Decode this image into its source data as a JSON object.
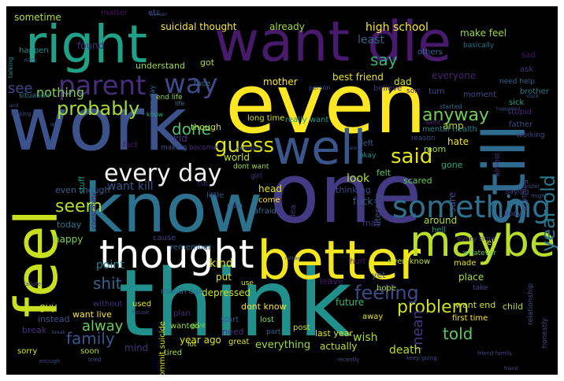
{
  "words": [
    {
      "text": "want die",
      "color": "#481a6c"
    },
    {
      "text": "even",
      "color": "#fde725"
    },
    {
      "text": "work",
      "color": "#3b528b"
    },
    {
      "text": "think",
      "color": "#21908d"
    },
    {
      "text": "know",
      "color": "#2c718e"
    },
    {
      "text": "one",
      "color": "#443a83"
    },
    {
      "text": "better",
      "color": "#f4e61e"
    },
    {
      "text": "right",
      "color": "#1fa187"
    },
    {
      "text": "feel",
      "color": "#c8e020"
    },
    {
      "text": "still",
      "color": "#2f6b8e"
    },
    {
      "text": "thought",
      "color": "#ffffff"
    },
    {
      "text": "maybe",
      "color": "#b8de29"
    },
    {
      "text": "well",
      "color": "#39568c"
    },
    {
      "text": "something",
      "color": "#2d708e"
    },
    {
      "text": "parent",
      "color": "#472d7b"
    },
    {
      "text": "way",
      "color": "#3f4889"
    },
    {
      "text": "every day",
      "color": "#f1f1f1"
    },
    {
      "text": "said",
      "color": "#e2e418"
    },
    {
      "text": "guess",
      "color": "#dde318"
    },
    {
      "text": "probably",
      "color": "#a5db36"
    },
    {
      "text": "year old",
      "color": "#2a788e"
    },
    {
      "text": "feeling",
      "color": "#3e4a89"
    },
    {
      "text": "problem",
      "color": "#d0e11c"
    },
    {
      "text": "anyway",
      "color": "#6ece58"
    },
    {
      "text": "seem",
      "color": "#b5de2b"
    },
    {
      "text": "shit",
      "color": "#33638d"
    },
    {
      "text": "done",
      "color": "#4ac16d"
    },
    {
      "text": "alway",
      "color": "#6ccd5a"
    },
    {
      "text": "family",
      "color": "#3a548c"
    },
    {
      "text": "told",
      "color": "#5ec962"
    },
    {
      "text": "want kill",
      "color": "#38598c"
    },
    {
      "text": "mean",
      "color": "#453781"
    },
    {
      "text": "say",
      "color": "#35b779"
    },
    {
      "text": "see",
      "color": "#3e4989"
    },
    {
      "text": "nothing",
      "color": "#7ad151"
    },
    {
      "text": "sometime",
      "color": "#b0dd2f"
    },
    {
      "text": "found",
      "color": "#46337e"
    },
    {
      "text": "matter",
      "color": "#471063"
    },
    {
      "text": "etc",
      "color": "#3b528b"
    },
    {
      "text": "suicidal thought",
      "color": "#fde725"
    },
    {
      "text": "already",
      "color": "#a0da39"
    },
    {
      "text": "high school",
      "color": "#fde725"
    },
    {
      "text": "make feel",
      "color": "#9bd93c"
    },
    {
      "text": "sad",
      "color": "#481769"
    },
    {
      "text": "ask",
      "color": "#46317e"
    },
    {
      "text": "need help",
      "color": "#31688e"
    },
    {
      "text": "least",
      "color": "#34618d"
    },
    {
      "text": "dad",
      "color": "#d8e219"
    },
    {
      "text": "mother",
      "color": "#fde725"
    },
    {
      "text": "best friend",
      "color": "#e7e419"
    },
    {
      "text": "everyone",
      "color": "#482475"
    },
    {
      "text": "amp",
      "color": "#c2df23"
    },
    {
      "text": "understand",
      "color": "#9bd93c"
    },
    {
      "text": "got",
      "color": "#addc30"
    },
    {
      "text": "face",
      "color": "#2e6e8e"
    },
    {
      "text": "others",
      "color": "#31688e"
    },
    {
      "text": "basically",
      "color": "#2c728e"
    },
    {
      "text": "sick",
      "color": "#21a685"
    },
    {
      "text": "brother",
      "color": "#29798e"
    },
    {
      "text": "moment",
      "color": "#3c4f8a"
    },
    {
      "text": "stupid",
      "color": "#482878"
    },
    {
      "text": "father",
      "color": "#3d4d8a"
    },
    {
      "text": "hate",
      "color": "#f1e51d"
    },
    {
      "text": "mental health",
      "color": "#277f8e"
    },
    {
      "text": "long time",
      "color": "#d0e11c"
    },
    {
      "text": "though",
      "color": "#c5e021"
    },
    {
      "text": "end life",
      "color": "#8bd646"
    },
    {
      "text": "know",
      "color": "#26ad81"
    },
    {
      "text": "kid",
      "color": "#46337e"
    },
    {
      "text": "really want",
      "color": "#1f9a8a"
    },
    {
      "text": "left",
      "color": "#34618d"
    },
    {
      "text": "mom",
      "color": "#9fda3a"
    },
    {
      "text": "world",
      "color": "#c0df25"
    },
    {
      "text": "dont want",
      "color": "#a2da37"
    },
    {
      "text": "girl",
      "color": "#463480"
    },
    {
      "text": "head",
      "color": "#dde318"
    },
    {
      "text": "look",
      "color": "#b5de2b"
    },
    {
      "text": "thinking",
      "color": "#404688"
    },
    {
      "text": "felt",
      "color": "#5cc863"
    },
    {
      "text": "scared",
      "color": "#67cc5c"
    },
    {
      "text": "gone",
      "color": "#25ab82"
    },
    {
      "text": "sure",
      "color": "#3d4e8a"
    },
    {
      "text": "even though",
      "color": "#34618d"
    },
    {
      "text": "stuff",
      "color": "#1f9e89"
    },
    {
      "text": "today",
      "color": "#2c728e"
    },
    {
      "text": "cut",
      "color": "#482173"
    },
    {
      "text": "little",
      "color": "#3a548c"
    },
    {
      "text": "come",
      "color": "#fde725"
    },
    {
      "text": "afraid",
      "color": "#2e6d8e"
    },
    {
      "text": "idea",
      "color": "#46307e"
    },
    {
      "text": "may",
      "color": "#472f7d"
    },
    {
      "text": "fuck",
      "color": "#375a8c"
    },
    {
      "text": "literally",
      "color": "#3b528b"
    },
    {
      "text": "around",
      "color": "#b0dd2f"
    },
    {
      "text": "hell",
      "color": "#20a386"
    },
    {
      "text": "happy",
      "color": "#7ad151"
    },
    {
      "text": "every time",
      "color": "#46327e"
    },
    {
      "text": "tell",
      "color": "#d2e21b"
    },
    {
      "text": "whatever",
      "color": "#6ccd5a"
    },
    {
      "text": "kind",
      "color": "#dde318"
    },
    {
      "text": "point",
      "color": "#25848e"
    },
    {
      "text": "put",
      "color": "#dde318"
    },
    {
      "text": "cause",
      "color": "#424086"
    },
    {
      "text": "remember",
      "color": "#31678e"
    },
    {
      "text": "hurt",
      "color": "#48186a"
    },
    {
      "text": "even know",
      "color": "#c2df23"
    },
    {
      "text": "yet",
      "color": "#3b528b"
    },
    {
      "text": "made",
      "color": "#e7e419"
    },
    {
      "text": "place",
      "color": "#addc30"
    },
    {
      "text": "take",
      "color": "#3f4788"
    },
    {
      "text": "hope",
      "color": "#b2dd2d"
    },
    {
      "text": "depressed",
      "color": "#c5e021"
    },
    {
      "text": "future",
      "color": "#35b779"
    },
    {
      "text": "leave",
      "color": "#481c6e"
    },
    {
      "text": "guy",
      "color": "#c2df23"
    },
    {
      "text": "month ago",
      "color": "#31688e"
    },
    {
      "text": "used",
      "color": "#dde318"
    },
    {
      "text": "plan",
      "color": "#472f7d"
    },
    {
      "text": "wanted",
      "color": "#a0da39"
    },
    {
      "text": "dont know",
      "color": "#fde725"
    },
    {
      "text": "away",
      "color": "#e2e418"
    },
    {
      "text": "want end",
      "color": "#d2e21b"
    },
    {
      "text": "first time",
      "color": "#fde725"
    },
    {
      "text": "relationship",
      "color": "#3c4f8a"
    },
    {
      "text": "child",
      "color": "#b8de29"
    },
    {
      "text": "without",
      "color": "#46327e"
    },
    {
      "text": "instead",
      "color": "#3b528b"
    },
    {
      "text": "break",
      "color": "#472c7a"
    },
    {
      "text": "want live",
      "color": "#fde725"
    },
    {
      "text": "year ago",
      "color": "#dde318"
    },
    {
      "text": "mind",
      "color": "#46327e"
    },
    {
      "text": "tired",
      "color": "#a8db34"
    },
    {
      "text": "commit suicide",
      "color": "#dde318"
    },
    {
      "text": "give",
      "color": "#70cf57"
    },
    {
      "text": "lot",
      "color": "#d8e219"
    },
    {
      "text": "need",
      "color": "#46317e"
    },
    {
      "text": "start",
      "color": "#3a548c"
    },
    {
      "text": "great",
      "color": "#dde318"
    },
    {
      "text": "part",
      "color": "#34618d"
    },
    {
      "text": "lost",
      "color": "#8bd646"
    },
    {
      "text": "post",
      "color": "#c8e020"
    },
    {
      "text": "last year",
      "color": "#dde318"
    },
    {
      "text": "everything",
      "color": "#a0da39"
    },
    {
      "text": "actually",
      "color": "#bddf26"
    },
    {
      "text": "wish",
      "color": "#a5db36"
    },
    {
      "text": "death",
      "color": "#b8de29"
    },
    {
      "text": "sorry",
      "color": "#d5e21a"
    },
    {
      "text": "soon",
      "color": "#b8de29"
    },
    {
      "text": "honestly",
      "color": "#3f4889"
    },
    {
      "text": "use",
      "color": "#dde318"
    },
    {
      "text": "constantly",
      "color": "#481a6c"
    },
    {
      "text": "happen",
      "color": "#20928c"
    },
    {
      "text": "talking",
      "color": "#228c8d"
    },
    {
      "text": "situation",
      "color": "#2a778e"
    },
    {
      "text": "life",
      "color": "#2c728e"
    },
    {
      "text": "one day",
      "color": "#33638d"
    },
    {
      "text": "fact",
      "color": "#481769"
    },
    {
      "text": "making",
      "color": "#3e4a89"
    },
    {
      "text": "become",
      "color": "#482878"
    },
    {
      "text": "man",
      "color": "#3a548c"
    },
    {
      "text": "okay",
      "color": "#218f8d"
    },
    {
      "text": "believe",
      "color": "#46337e"
    },
    {
      "text": "turn",
      "color": "#3c4f8a"
    },
    {
      "text": "sort",
      "color": "#482475"
    },
    {
      "text": "person",
      "color": "#3a548c"
    },
    {
      "text": "working",
      "color": "#3f4788"
    },
    {
      "text": "started",
      "color": "#2f6c8e"
    },
    {
      "text": "went",
      "color": "#481f70"
    },
    {
      "text": "reason",
      "color": "#3e4a89"
    },
    {
      "text": "almost",
      "color": "#453882"
    },
    {
      "text": "saying",
      "color": "#453882"
    },
    {
      "text": "anything",
      "color": "#3f4889"
    },
    {
      "text": "body",
      "color": "#3f4889"
    },
    {
      "text": "failure",
      "color": "#3b528b"
    },
    {
      "text": "house",
      "color": "#3f4788"
    },
    {
      "text": "keep going",
      "color": "#3e4a89"
    },
    {
      "text": "recently",
      "color": "#3b528b"
    },
    {
      "text": "friend family",
      "color": "#3e4989"
    },
    {
      "text": "enough",
      "color": "#3e4989"
    },
    {
      "text": "looking",
      "color": "#3f4788"
    },
    {
      "text": "sister",
      "color": "#3f4788"
    },
    {
      "text": "tried",
      "color": "#3b528b"
    },
    {
      "text": "might",
      "color": "#3b528b"
    },
    {
      "text": "woman",
      "color": "#3b528b"
    },
    {
      "text": "worry",
      "color": "#3e4989"
    },
    {
      "text": "stuck",
      "color": "#3b528b"
    },
    {
      "text": "happened",
      "color": "#3e4989"
    },
    {
      "text": "rather",
      "color": "#3b528b"
    },
    {
      "text": "least",
      "color": "#3b528b"
    },
    {
      "text": "issue",
      "color": "#3b528b"
    },
    {
      "text": "and",
      "color": "#3b528b"
    },
    {
      "text": "experience",
      "color": "#3b528b"
    },
    {
      "text": "friend",
      "color": "#3b528b"
    },
    {
      "text": "break",
      "color": "#3b528b"
    },
    {
      "text": "care",
      "color": "#3b528b"
    }
  ]
}
